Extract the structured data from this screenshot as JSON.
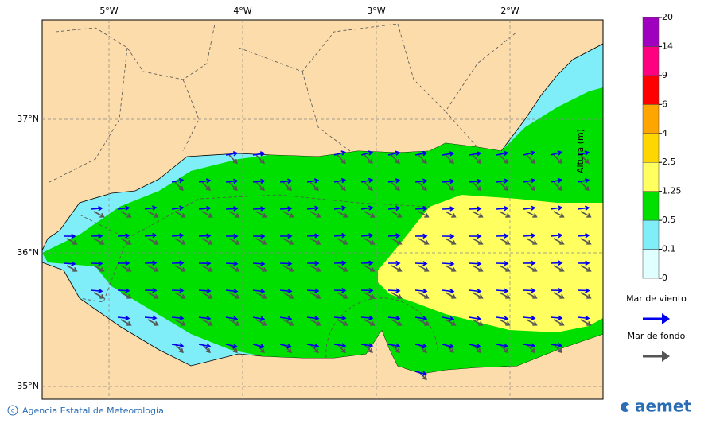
{
  "map": {
    "lon_ticks": [
      {
        "value": -5,
        "label": "5°W"
      },
      {
        "value": -4,
        "label": "4°W"
      },
      {
        "value": -3,
        "label": "3°W"
      },
      {
        "value": -2,
        "label": "2°W"
      }
    ],
    "lat_ticks": [
      {
        "value": 37,
        "label": "37°N"
      },
      {
        "value": 36,
        "label": "36°N"
      },
      {
        "value": 35,
        "label": "35°N"
      }
    ]
  },
  "colorbar": {
    "title": "Altura (m)",
    "levels": [
      0,
      0.1,
      0.5,
      1.25,
      2.5,
      4,
      6,
      9,
      14,
      20
    ],
    "colors": [
      "#e0ffff",
      "#80eef8",
      "#00e000",
      "#ffff60",
      "#ffd700",
      "#ffa500",
      "#ff0000",
      "#ff0080",
      "#a000c0"
    ]
  },
  "legend": [
    {
      "label": "Mar de viento",
      "color": "#0000ee"
    },
    {
      "label": "Mar de fondo",
      "color": "#555555"
    }
  ],
  "footer": {
    "credit": "Agencia Estatal de Meteorología",
    "logo": "aemet"
  }
}
